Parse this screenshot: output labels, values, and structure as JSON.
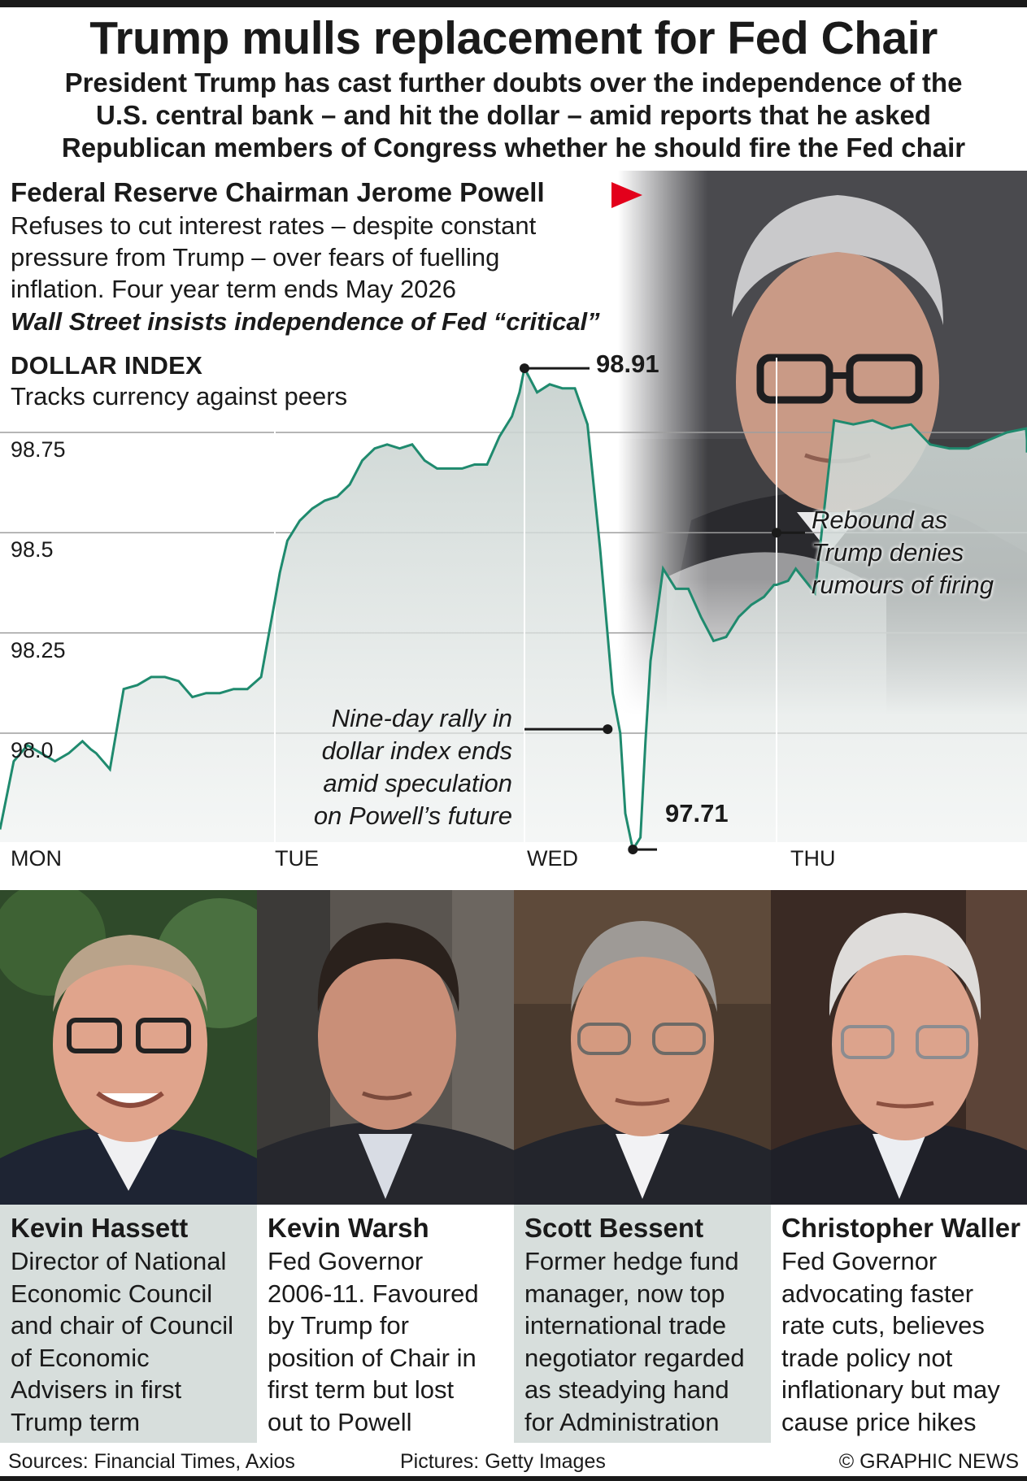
{
  "headline": "Trump mulls replacement for Fed Chair",
  "standfirst": [
    "President Trump has cast further doubts over the independence of the",
    "U.S. central bank – and hit the dollar – amid reports that he asked",
    "Republican members of Congress whether he should fire the Fed chair"
  ],
  "powell": {
    "name": "Federal Reserve Chairman Jerome Powell",
    "description": [
      "Refuses to cut interest rates – despite constant",
      "pressure from Trump – over fears of fuelling",
      "inflation. Four year term ends May 2026"
    ],
    "wall_street": "Wall Street insists independence of Fed “critical”",
    "photo": "jerome-powell-portrait"
  },
  "chart_data": {
    "type": "area",
    "title": "DOLLAR INDEX",
    "subtitle": "Tracks currency against peers",
    "xlabel": "",
    "ylabel": "",
    "ylim": [
      97.68,
      99.0
    ],
    "yticks": [
      98.0,
      98.25,
      98.5,
      98.75
    ],
    "ytick_labels": [
      "98.0",
      "98.25",
      "98.5",
      "98.75"
    ],
    "xtick_labels": [
      "MON",
      "TUE",
      "WED",
      "THU"
    ],
    "grid": true,
    "colors": {
      "line": "#1f8a6e",
      "fill": "#d7dedc",
      "grid": "#9e9e9e",
      "accent": "#e3001b"
    },
    "series": [
      {
        "x": [
          0,
          0.05,
          0.1,
          0.15,
          0.2,
          0.25,
          0.3,
          0.33,
          0.35,
          0.4,
          0.45,
          0.5,
          0.55,
          0.6,
          0.65,
          0.7,
          0.75,
          0.8,
          0.85,
          0.9,
          0.95,
          1.0,
          1.02,
          1.05,
          1.1,
          1.15,
          1.2,
          1.25,
          1.3,
          1.35,
          1.4,
          1.45,
          1.5,
          1.55,
          1.6,
          1.65,
          1.7,
          1.75,
          1.8,
          1.85,
          1.9,
          1.95,
          1.98,
          2.0,
          2.05,
          2.1,
          2.15,
          2.2,
          2.25,
          2.3,
          2.35,
          2.38,
          2.4,
          2.43,
          2.46,
          2.48,
          2.5,
          2.55,
          2.6,
          2.65,
          2.7,
          2.75,
          2.8,
          2.85,
          2.9,
          2.95,
          2.99,
          3.0,
          3.03,
          3.05,
          3.1,
          3.15,
          3.2,
          3.25,
          3.3,
          3.35,
          3.4,
          3.45,
          3.5,
          3.55,
          3.6,
          3.65,
          3.7,
          3.75,
          3.8,
          3.85,
          3.9
        ],
        "values": [
          97.76,
          97.93,
          97.97,
          97.95,
          97.93,
          97.95,
          97.98,
          97.96,
          97.95,
          97.91,
          98.11,
          98.12,
          98.14,
          98.14,
          98.13,
          98.09,
          98.1,
          98.1,
          98.11,
          98.11,
          98.14,
          98.33,
          98.4,
          98.48,
          98.53,
          98.56,
          98.58,
          98.59,
          98.62,
          98.68,
          98.71,
          98.72,
          98.71,
          98.72,
          98.68,
          98.66,
          98.66,
          98.66,
          98.67,
          98.67,
          98.74,
          98.79,
          98.85,
          98.91,
          98.85,
          98.87,
          98.86,
          98.86,
          98.77,
          98.46,
          98.1,
          98.0,
          97.8,
          97.71,
          97.74,
          97.98,
          98.18,
          98.41,
          98.36,
          98.36,
          98.29,
          98.23,
          98.24,
          98.29,
          98.32,
          98.34,
          98.37,
          98.37,
          98.38,
          98.41,
          98.35,
          98.78,
          98.77,
          98.78,
          98.76,
          98.77,
          98.72,
          98.71,
          98.71,
          98.73,
          98.75,
          98.76,
          98.73,
          98.76,
          98.75,
          98.74,
          98.7
        ]
      }
    ],
    "annotations": [
      {
        "label": "98.91",
        "x": 2.0,
        "y": 98.91
      },
      {
        "label": "97.71",
        "x": 2.43,
        "y": 97.71
      },
      {
        "text": [
          "Nine-day rally in",
          "dollar index ends",
          "amid speculation",
          "on Powell’s future"
        ],
        "x": 2.33,
        "y": 98.01
      },
      {
        "text": [
          "Rebound as",
          "Trump denies",
          "rumours of firing"
        ],
        "x": 3.0,
        "y": 98.5
      }
    ]
  },
  "candidates": [
    {
      "name": "Kevin Hassett",
      "photo": "kevin-hassett-portrait",
      "description": [
        "Director of National",
        "Economic Council",
        "and chair of Council",
        "of Economic",
        "Advisers in first",
        "Trump term"
      ]
    },
    {
      "name": "Kevin Warsh",
      "photo": "kevin-warsh-portrait",
      "description": [
        "Fed Governor",
        "2006-11. Favoured",
        "by Trump for",
        "position of Chair in",
        "first term but lost",
        "out to Powell"
      ]
    },
    {
      "name": "Scott Bessent",
      "photo": "scott-bessent-portrait",
      "description": [
        "Former hedge fund",
        "manager, now top",
        "international trade",
        "negotiator regarded",
        "as steadying hand",
        "for Administration"
      ]
    },
    {
      "name": "Christopher Waller",
      "photo": "christopher-waller-portrait",
      "description": [
        "Fed Governor",
        "advocating faster",
        "rate cuts, believes",
        "trade policy not",
        "inflationary but may",
        "cause price hikes"
      ]
    }
  ],
  "footer": {
    "sources": "Sources: Financial Times, Axios",
    "pictures": "Pictures: Getty Images",
    "copyright": "© GRAPHIC NEWS"
  }
}
